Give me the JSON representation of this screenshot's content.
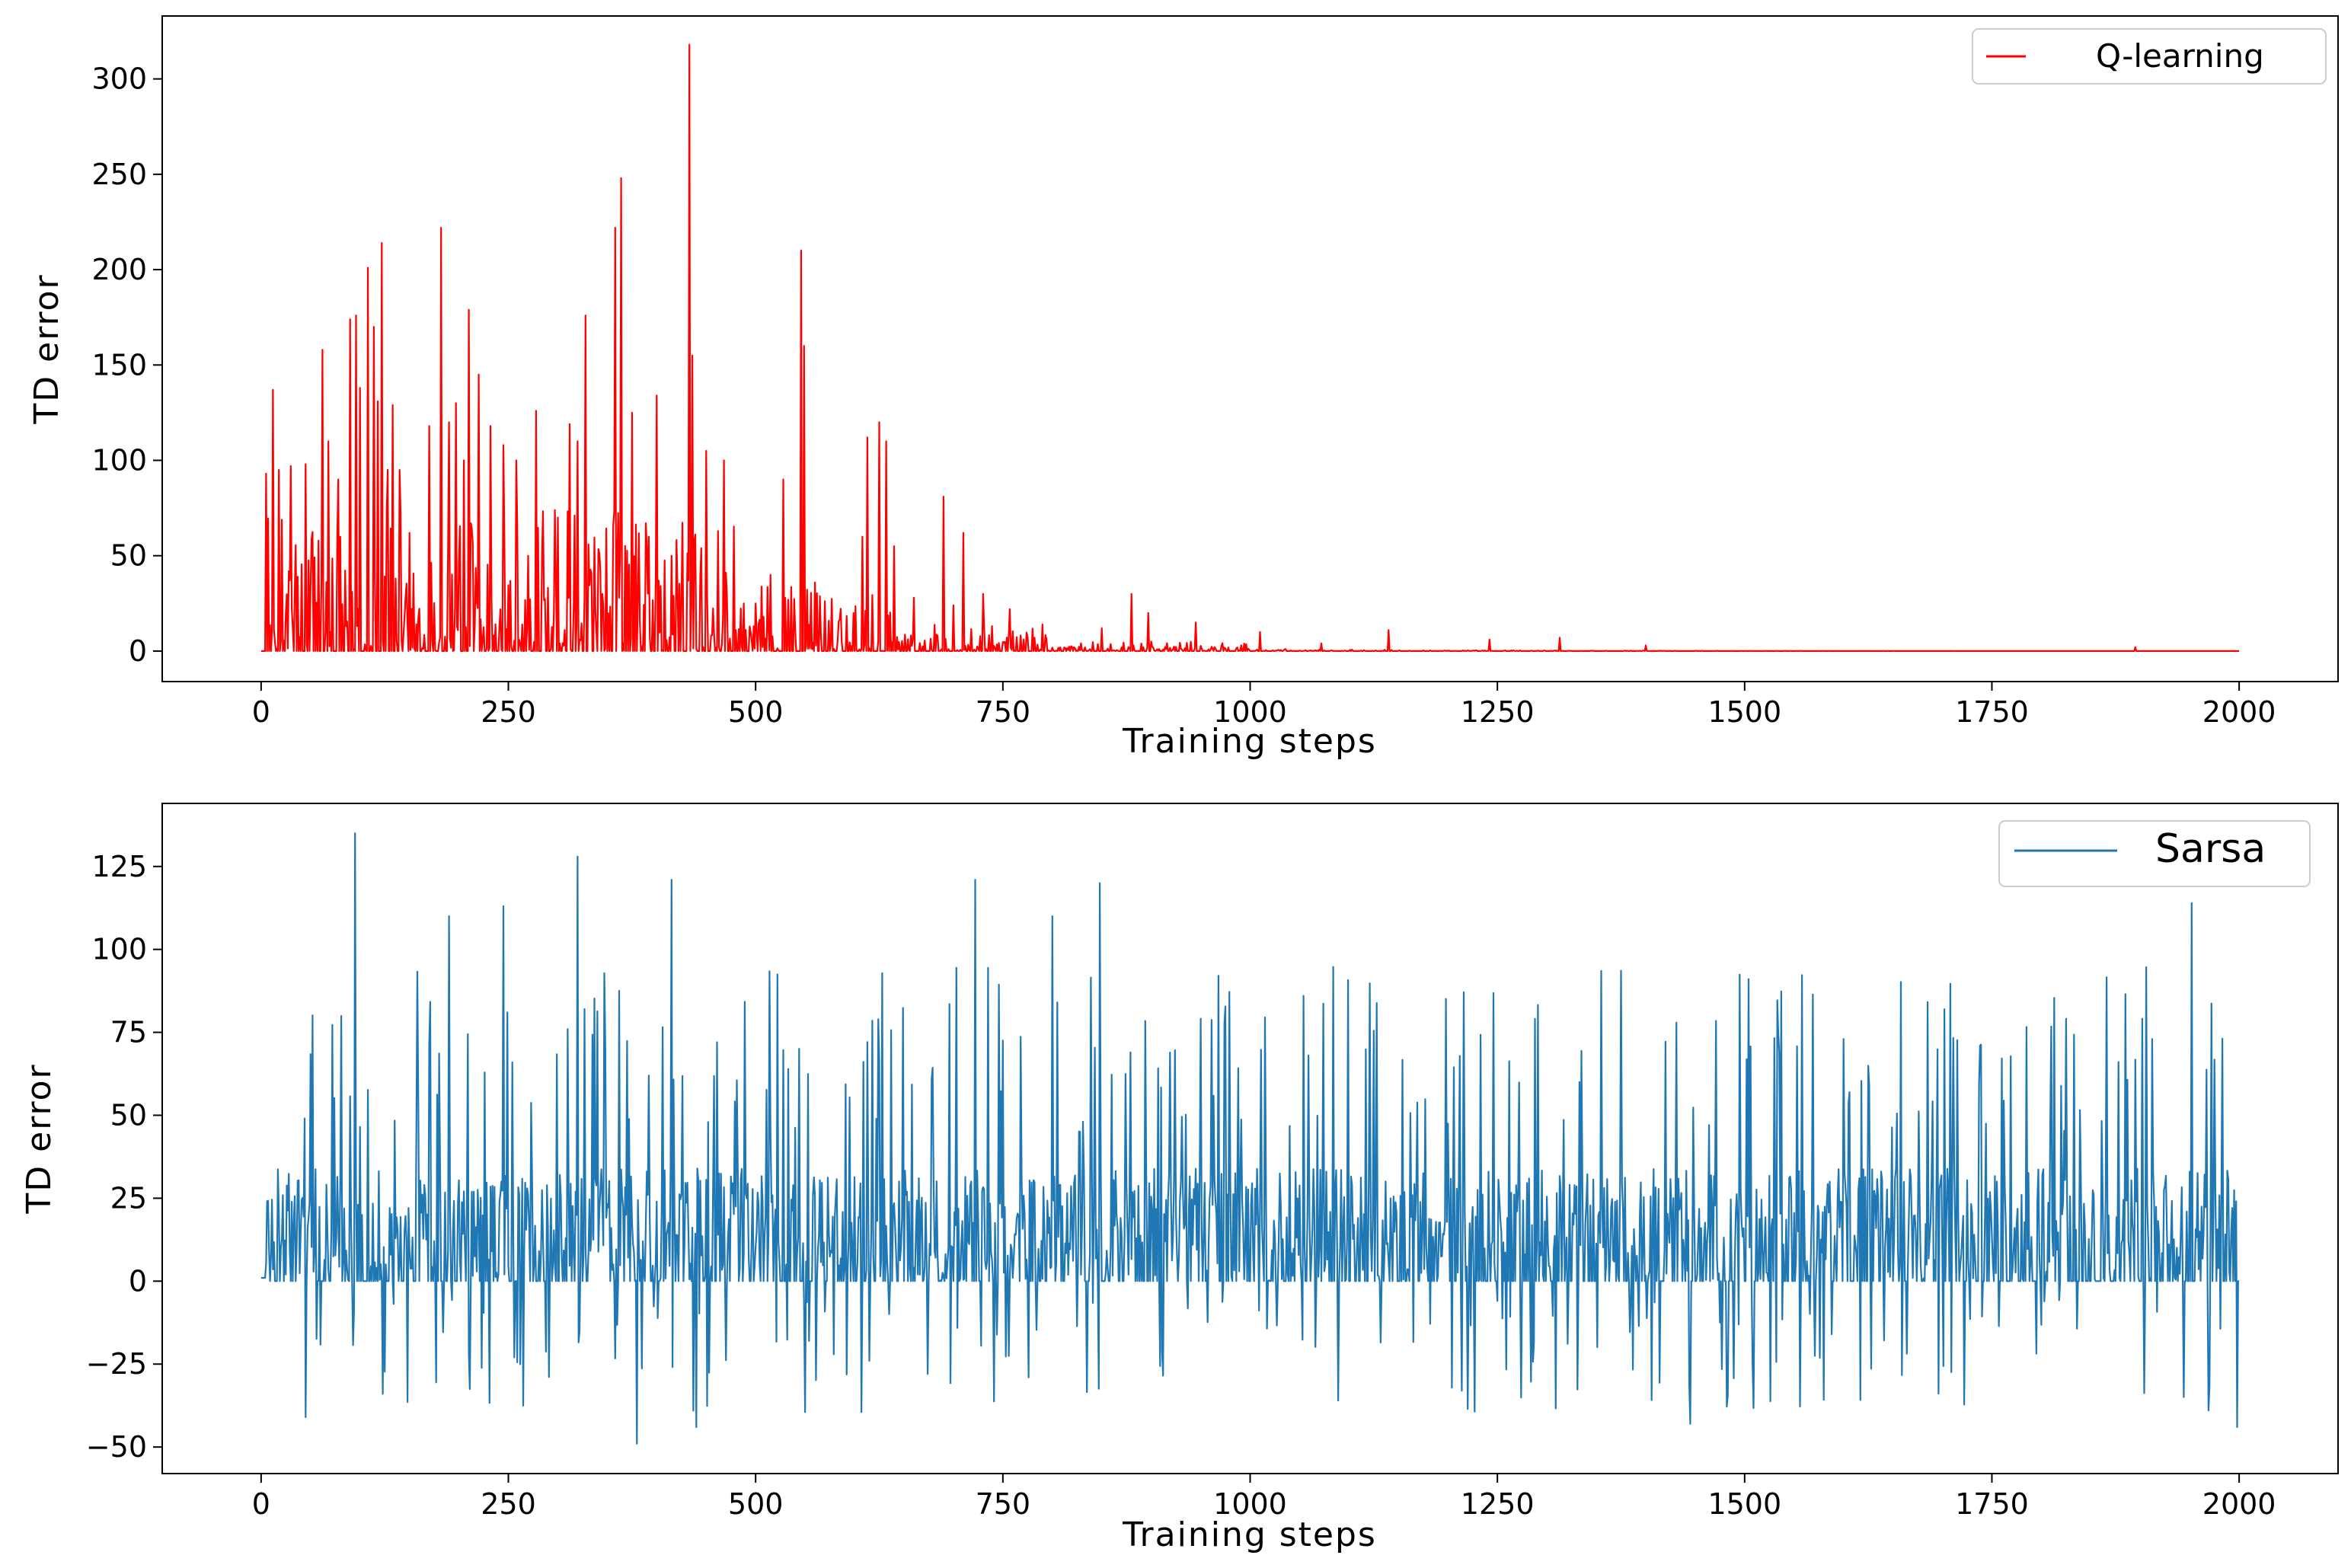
{
  "figure": {
    "background": "#ffffff"
  },
  "chart_data": [
    {
      "type": "line",
      "title": "",
      "xlabel": "Training steps",
      "ylabel": "TD error",
      "xlim": [
        -100,
        2100
      ],
      "ylim": [
        -16,
        333
      ],
      "xticks": [
        0,
        250,
        500,
        750,
        1000,
        1250,
        1500,
        1750,
        2000
      ],
      "xtick_labels": [
        "0",
        "250",
        "500",
        "750",
        "1000",
        "1250",
        "1500",
        "1750",
        "2000"
      ],
      "yticks": [
        0,
        50,
        100,
        150,
        200,
        250,
        300
      ],
      "ytick_labels": [
        "0",
        "50",
        "100",
        "150",
        "200",
        "250",
        "300"
      ],
      "grid": false,
      "legend_position": "top-right",
      "series": [
        {
          "name": "Q-learning",
          "color": "#ff0000",
          "description": "Nonnegative TD error per training step; spikes up to ~318 before step 560, decaying to near zero after ~1000",
          "peaks": [
            {
              "x": 5,
              "y": 93
            },
            {
              "x": 12,
              "y": 137
            },
            {
              "x": 18,
              "y": 95
            },
            {
              "x": 30,
              "y": 97
            },
            {
              "x": 45,
              "y": 98
            },
            {
              "x": 62,
              "y": 158
            },
            {
              "x": 68,
              "y": 110
            },
            {
              "x": 78,
              "y": 90
            },
            {
              "x": 90,
              "y": 174
            },
            {
              "x": 96,
              "y": 176
            },
            {
              "x": 100,
              "y": 138
            },
            {
              "x": 108,
              "y": 201
            },
            {
              "x": 114,
              "y": 170
            },
            {
              "x": 118,
              "y": 131
            },
            {
              "x": 122,
              "y": 214
            },
            {
              "x": 128,
              "y": 95
            },
            {
              "x": 133,
              "y": 129
            },
            {
              "x": 140,
              "y": 95
            },
            {
              "x": 150,
              "y": 62
            },
            {
              "x": 170,
              "y": 118
            },
            {
              "x": 182,
              "y": 222
            },
            {
              "x": 190,
              "y": 120
            },
            {
              "x": 197,
              "y": 130
            },
            {
              "x": 205,
              "y": 100
            },
            {
              "x": 210,
              "y": 179
            },
            {
              "x": 220,
              "y": 145
            },
            {
              "x": 232,
              "y": 118
            },
            {
              "x": 245,
              "y": 108
            },
            {
              "x": 258,
              "y": 100
            },
            {
              "x": 270,
              "y": 50
            },
            {
              "x": 278,
              "y": 126
            },
            {
              "x": 300,
              "y": 70
            },
            {
              "x": 312,
              "y": 119
            },
            {
              "x": 320,
              "y": 110
            },
            {
              "x": 328,
              "y": 176
            },
            {
              "x": 345,
              "y": 30
            },
            {
              "x": 358,
              "y": 222
            },
            {
              "x": 364,
              "y": 248
            },
            {
              "x": 375,
              "y": 125
            },
            {
              "x": 392,
              "y": 60
            },
            {
              "x": 400,
              "y": 134
            },
            {
              "x": 415,
              "y": 50
            },
            {
              "x": 433,
              "y": 318
            },
            {
              "x": 436,
              "y": 155
            },
            {
              "x": 450,
              "y": 105
            },
            {
              "x": 462,
              "y": 63
            },
            {
              "x": 468,
              "y": 100
            },
            {
              "x": 488,
              "y": 25
            },
            {
              "x": 500,
              "y": 25
            },
            {
              "x": 515,
              "y": 40
            },
            {
              "x": 528,
              "y": 90
            },
            {
              "x": 546,
              "y": 210
            },
            {
              "x": 549,
              "y": 160
            },
            {
              "x": 560,
              "y": 36
            },
            {
              "x": 574,
              "y": 16
            },
            {
              "x": 608,
              "y": 60
            },
            {
              "x": 613,
              "y": 112
            },
            {
              "x": 625,
              "y": 120
            },
            {
              "x": 632,
              "y": 110
            },
            {
              "x": 640,
              "y": 55
            },
            {
              "x": 660,
              "y": 28
            },
            {
              "x": 690,
              "y": 81
            },
            {
              "x": 700,
              "y": 24
            },
            {
              "x": 710,
              "y": 62
            },
            {
              "x": 730,
              "y": 30
            },
            {
              "x": 757,
              "y": 22
            },
            {
              "x": 790,
              "y": 14
            },
            {
              "x": 850,
              "y": 12
            },
            {
              "x": 880,
              "y": 30
            },
            {
              "x": 897,
              "y": 20
            },
            {
              "x": 945,
              "y": 15
            },
            {
              "x": 1010,
              "y": 10
            },
            {
              "x": 1072,
              "y": 4
            },
            {
              "x": 1140,
              "y": 11
            },
            {
              "x": 1242,
              "y": 6
            },
            {
              "x": 1313,
              "y": 7
            },
            {
              "x": 1400,
              "y": 3
            },
            {
              "x": 1895,
              "y": 2
            }
          ]
        }
      ]
    },
    {
      "type": "line",
      "title": "",
      "xlabel": "Training steps",
      "ylabel": "TD error",
      "xlim": [
        -100,
        2100
      ],
      "ylim": [
        -58,
        144
      ],
      "xticks": [
        0,
        250,
        500,
        750,
        1000,
        1250,
        1500,
        1750,
        2000
      ],
      "xtick_labels": [
        "0",
        "250",
        "500",
        "750",
        "1000",
        "1250",
        "1500",
        "1750",
        "2000"
      ],
      "yticks": [
        -50,
        -25,
        0,
        25,
        50,
        75,
        100,
        125
      ],
      "ytick_labels": [
        "−50",
        "−25",
        "0",
        "25",
        "50",
        "75",
        "100",
        "125"
      ],
      "grid": false,
      "legend_position": "top-right",
      "series": [
        {
          "name": "Sarsa",
          "color": "#1f77b4",
          "description": "Noisy TD error throughout training, mostly between -45 and 100, dense band around 0 to 35",
          "peaks": [
            {
              "x": 95,
              "y": 135
            },
            {
              "x": 320,
              "y": 128
            },
            {
              "x": 415,
              "y": 121
            },
            {
              "x": 722,
              "y": 121
            },
            {
              "x": 848,
              "y": 120
            },
            {
              "x": 1952,
              "y": 114
            },
            {
              "x": 245,
              "y": 113
            },
            {
              "x": 800,
              "y": 110
            },
            {
              "x": 190,
              "y": 110
            },
            {
              "x": 380,
              "y": -49
            },
            {
              "x": 440,
              "y": -44
            },
            {
              "x": 45,
              "y": -41
            },
            {
              "x": 1445,
              "y": -43
            },
            {
              "x": 1998,
              "y": -44
            }
          ]
        }
      ]
    }
  ]
}
